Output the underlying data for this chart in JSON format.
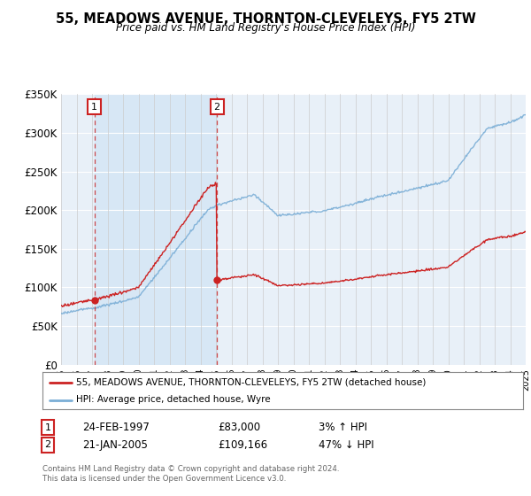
{
  "title": "55, MEADOWS AVENUE, THORNTON-CLEVELEYS, FY5 2TW",
  "subtitle": "Price paid vs. HM Land Registry's House Price Index (HPI)",
  "hpi_color": "#7aaed6",
  "price_color": "#cc2222",
  "plot_bg": "#e8f0f8",
  "shade_color": "#d0e4f5",
  "ylim": [
    0,
    350000
  ],
  "yticks": [
    0,
    50000,
    100000,
    150000,
    200000,
    250000,
    300000,
    350000
  ],
  "ytick_labels": [
    "£0",
    "£50K",
    "£100K",
    "£150K",
    "£200K",
    "£250K",
    "£300K",
    "£350K"
  ],
  "sale1_year": 1997.15,
  "sale1_price": 83000,
  "sale2_year": 2005.06,
  "sale2_price": 109166,
  "legend_line1": "55, MEADOWS AVENUE, THORNTON-CLEVELEYS, FY5 2TW (detached house)",
  "legend_line2": "HPI: Average price, detached house, Wyre",
  "sale1_date": "24-FEB-1997",
  "sale1_amount": "£83,000",
  "sale1_hpi": "3% ↑ HPI",
  "sale2_date": "21-JAN-2005",
  "sale2_amount": "£109,166",
  "sale2_hpi": "47% ↓ HPI",
  "footnote": "Contains HM Land Registry data © Crown copyright and database right 2024.\nThis data is licensed under the Open Government Licence v3.0.",
  "xmin": 1995,
  "xmax": 2025
}
